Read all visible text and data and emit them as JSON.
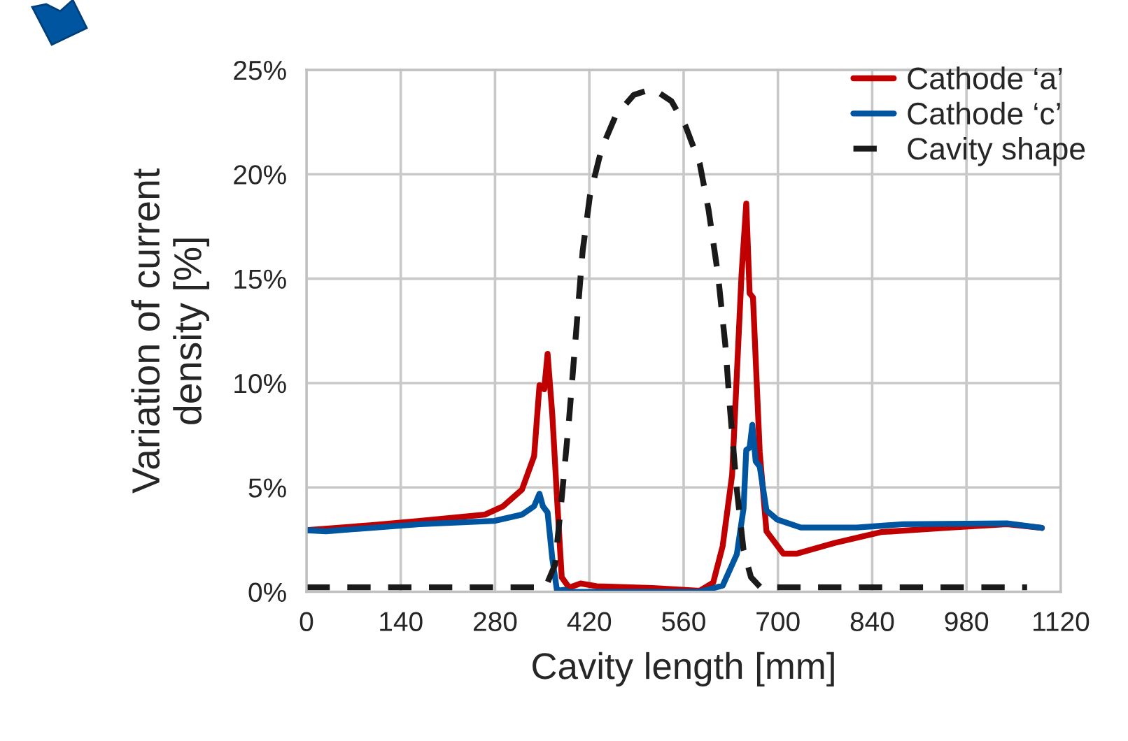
{
  "chart_data": {
    "type": "line",
    "xlabel": "Cavity length [mm]",
    "ylabel": "Variation of current\ndensity [%]",
    "xlim": [
      0,
      1120
    ],
    "xticks": [
      0,
      140,
      280,
      420,
      560,
      700,
      840,
      980,
      1120
    ],
    "ylim": [
      0,
      25
    ],
    "yticks": [
      {
        "value": 0,
        "label": "0%"
      },
      {
        "value": 5,
        "label": "5%"
      },
      {
        "value": 10,
        "label": "10%"
      },
      {
        "value": 15,
        "label": "15%"
      },
      {
        "value": 20,
        "label": "20%"
      },
      {
        "value": 25,
        "label": "25%"
      }
    ],
    "grid": true,
    "legend": "top right",
    "marker": "none",
    "series": [
      {
        "name": "Cathode ‘a’",
        "color": "#c00000",
        "line_style": "solid",
        "x": [
          0,
          98,
          168,
          265,
          292,
          320,
          338,
          346,
          353,
          358,
          365,
          372,
          379,
          390,
          407,
          431,
          514,
          584,
          604,
          618,
          632,
          646,
          653,
          658,
          663,
          673,
          683,
          708,
          728,
          784,
          853,
          957,
          1040,
          1092
        ],
        "values": [
          2.95,
          3.2,
          3.4,
          3.7,
          4.1,
          4.9,
          6.5,
          9.9,
          9.7,
          11.4,
          8.5,
          4.5,
          0.7,
          0.2,
          0.4,
          0.27,
          0.18,
          0.05,
          0.45,
          2.2,
          5.6,
          15.2,
          18.6,
          14.3,
          14.1,
          6.7,
          2.9,
          1.83,
          1.83,
          2.34,
          2.86,
          3.08,
          3.24,
          3.06
        ]
      },
      {
        "name": "Cathode ‘c’",
        "color": "#0055a0",
        "line_style": "solid",
        "x": [
          0,
          29,
          168,
          279,
          320,
          338,
          346,
          351,
          358,
          365,
          372,
          383,
          390,
          445,
          584,
          618,
          639,
          649,
          653,
          658,
          662,
          667,
          673,
          683,
          699,
          734,
          817,
          886,
          1040,
          1092
        ],
        "values": [
          2.95,
          2.9,
          3.24,
          3.4,
          3.7,
          4.1,
          4.7,
          4.1,
          3.8,
          1.6,
          0.05,
          0.1,
          0.0,
          0.0,
          0.0,
          0.3,
          1.8,
          4.0,
          6.8,
          6.9,
          8.0,
          6.25,
          6.0,
          3.9,
          3.46,
          3.08,
          3.08,
          3.24,
          3.28,
          3.06
        ]
      },
      {
        "name": "Cavity shape",
        "color": "#1a1a1a",
        "line_style": "dashed",
        "x": [
          0,
          355,
          369,
          379,
          390,
          400,
          410,
          421,
          438,
          459,
          486,
          514,
          542,
          563,
          584,
          597,
          611,
          622,
          629,
          639,
          649,
          660,
          674,
          1070
        ],
        "values": [
          0.22,
          0.22,
          1.3,
          4.5,
          8.3,
          12.3,
          16.3,
          19.0,
          21.2,
          22.8,
          23.8,
          24.1,
          23.5,
          22.3,
          20.5,
          18.3,
          15.2,
          11.8,
          8.7,
          4.9,
          2.0,
          0.7,
          0.22,
          0.22
        ]
      }
    ]
  }
}
